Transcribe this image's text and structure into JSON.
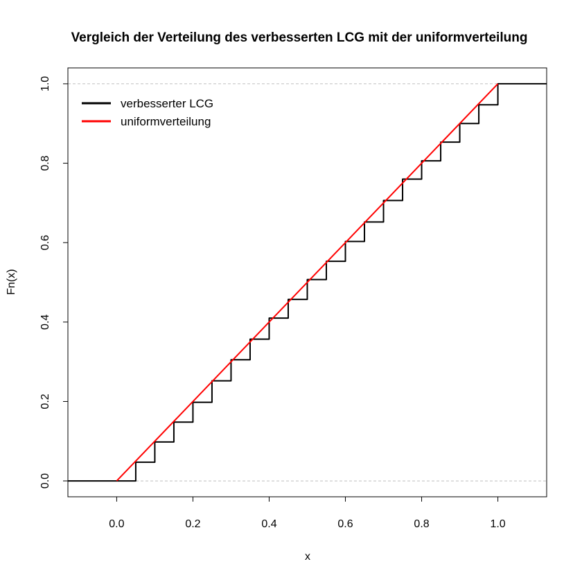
{
  "chart_data": {
    "type": "line",
    "title": "Vergleich der Verteilung des verbesserten LCG mit der uniformverteilung",
    "xlabel": "x",
    "ylabel": "Fn(x)",
    "xlim": [
      -0.128,
      1.128
    ],
    "ylim": [
      -0.04,
      1.04
    ],
    "x_ticks": [
      "0.0",
      "0.2",
      "0.4",
      "0.6",
      "0.8",
      "1.0"
    ],
    "y_ticks": [
      "0.0",
      "0.2",
      "0.4",
      "0.6",
      "0.8",
      "1.0"
    ],
    "x_tick_values": [
      0.0,
      0.2,
      0.4,
      0.6,
      0.8,
      1.0
    ],
    "y_tick_values": [
      0.0,
      0.2,
      0.4,
      0.6,
      0.8,
      1.0
    ],
    "reference_lines": [
      0,
      1
    ],
    "legend": {
      "placement": "top-left",
      "box": false
    },
    "series": [
      {
        "name": "verbesserter LCG",
        "color": "#000000",
        "style": "step",
        "x": [
          -0.128,
          0.0,
          0.05,
          0.1,
          0.15,
          0.2,
          0.25,
          0.3,
          0.35,
          0.4,
          0.45,
          0.5,
          0.55,
          0.6,
          0.65,
          0.7,
          0.75,
          0.8,
          0.85,
          0.9,
          0.95,
          1.0,
          1.128
        ],
        "y": [
          0.0,
          0.0,
          0.047,
          0.098,
          0.148,
          0.198,
          0.252,
          0.305,
          0.357,
          0.41,
          0.457,
          0.507,
          0.553,
          0.603,
          0.652,
          0.706,
          0.76,
          0.806,
          0.853,
          0.9,
          0.947,
          1.0,
          1.0
        ]
      },
      {
        "name": "uniformverteilung",
        "color": "#ff0000",
        "style": "line",
        "x": [
          0.0,
          1.0
        ],
        "y": [
          0.0,
          1.0
        ]
      }
    ]
  }
}
